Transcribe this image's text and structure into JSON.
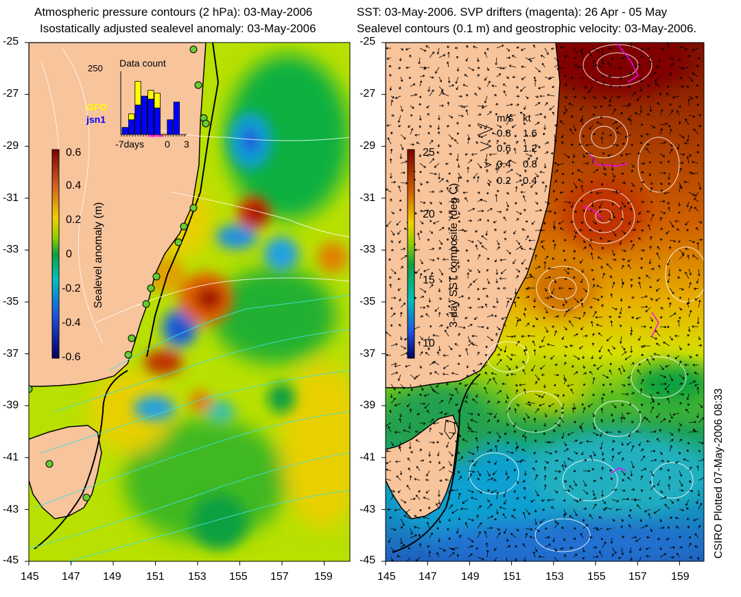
{
  "left_panel": {
    "title_line1": "Atmospheric pressure contours (2 hPa): 03-May-2006",
    "title_line2": "Isostatically adjusted sealevel anomaly: 03-May-2006",
    "y_ticks": [
      "-25",
      "-27",
      "-29",
      "-31",
      "-33",
      "-35",
      "-37",
      "-39",
      "-41",
      "-43",
      "-45"
    ],
    "x_ticks": [
      "145",
      "147",
      "149",
      "151",
      "153",
      "155",
      "157",
      "159"
    ],
    "colorbar": {
      "label": "Sealevel anomaly (m)",
      "ticks": [
        "0.6",
        "0.4",
        "0.2",
        "0",
        "-0.2",
        "-0.4",
        "-0.6"
      ],
      "range": [
        -0.6,
        0.6
      ]
    },
    "inset": {
      "title": "Data count",
      "ymax_label": "250",
      "legend_gfo": "GFO",
      "legend_jsn1": "jsn1",
      "x_label_left": "-7days",
      "x_label_mid": "0",
      "x_label_right": "3",
      "gfo_color": "#ffff00",
      "jsn1_color": "#0000ff",
      "bars_gfo": [
        0.1,
        0.35,
        0.9,
        0.25,
        0.75,
        0.7,
        0.0,
        0.0,
        0.0,
        0.0
      ],
      "bars_jsn1": [
        0.12,
        0.25,
        0.5,
        0.65,
        0.6,
        0.45,
        0.0,
        0.25,
        0.55,
        0.0
      ]
    }
  },
  "right_panel": {
    "title_line1": "SST: 03-May-2006. SVP drifters (magenta): 26 Apr - 05 May",
    "title_line2": "Sealevel contours (0.1 m) and geostrophic velocity: 03-May-2006.",
    "y_ticks": [
      "-25",
      "-27",
      "-29",
      "-31",
      "-33",
      "-35",
      "-37",
      "-39",
      "-41",
      "-43",
      "-45"
    ],
    "x_ticks": [
      "145",
      "147",
      "149",
      "151",
      "153",
      "155",
      "157",
      "159"
    ],
    "colorbar": {
      "label": "3-day SST composite (deg C)",
      "ticks": [
        "25",
        "20",
        "15",
        "10"
      ],
      "range": [
        9,
        25
      ]
    },
    "velocity_legend": {
      "header_ms": "m/s",
      "header_kt": "kt",
      "rows": [
        {
          "ms": "0.8",
          "kt": "1.6"
        },
        {
          "ms": "0.6",
          "kt": "1.2"
        },
        {
          "ms": "0.4",
          "kt": "0.8"
        },
        {
          "ms": "0.2",
          "kt": "0.4"
        }
      ]
    },
    "drifter_color": "#ff00ff"
  },
  "credit": "CSIRO Plotted 07-May-2006 08:33",
  "colors": {
    "land": "#f8c49c",
    "coast": "#000000",
    "contour_pressure": "#ffffff",
    "contour_cyan": "#40e0e0",
    "tide_gauge": "#66cc33"
  }
}
